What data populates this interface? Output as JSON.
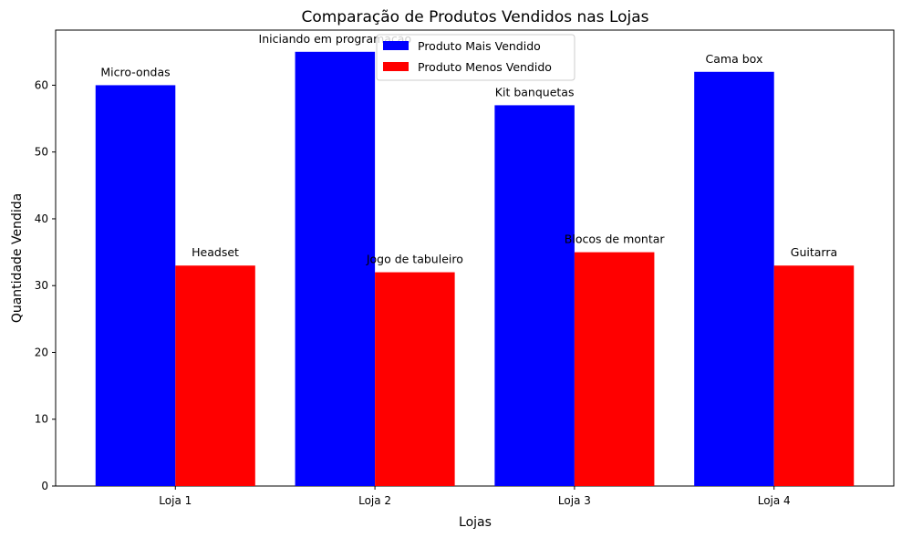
{
  "chart_data": {
    "type": "bar",
    "title": "Comparação de Produtos Vendidos nas Lojas",
    "xlabel": "Lojas",
    "ylabel": "Quantidade Vendida",
    "categories": [
      "Loja 1",
      "Loja 2",
      "Loja 3",
      "Loja 4"
    ],
    "ylim": [
      0,
      68.25
    ],
    "yticks": [
      0,
      10,
      20,
      30,
      40,
      50,
      60
    ],
    "grid": false,
    "legend_position": "top-center",
    "series": [
      {
        "name": "Produto Mais Vendido",
        "color": "#0000ff",
        "values": [
          60,
          65,
          57,
          62
        ],
        "labels": [
          "Micro-ondas",
          "Iniciando em programação",
          "Kit banquetas",
          "Cama box"
        ]
      },
      {
        "name": "Produto Menos Vendido",
        "color": "#ff0000",
        "values": [
          33,
          32,
          35,
          33
        ],
        "labels": [
          "Headset",
          "Jogo de tabuleiro",
          "Blocos de montar",
          "Guitarra"
        ]
      }
    ]
  }
}
